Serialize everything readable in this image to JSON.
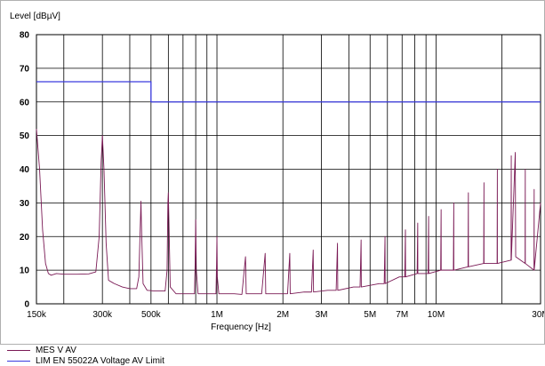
{
  "chart_data": {
    "type": "line",
    "ylabel": "Level [dBµV]",
    "xlabel": "Frequency [Hz]",
    "xscale": "log",
    "xlim": [
      150000,
      30000000
    ],
    "ylim": [
      0,
      80
    ],
    "yticks": [
      0,
      10,
      20,
      30,
      40,
      50,
      60,
      70,
      80
    ],
    "xticks": [
      {
        "value": 150000,
        "label": "150k"
      },
      {
        "value": 300000,
        "label": "300k"
      },
      {
        "value": 500000,
        "label": "500k"
      },
      {
        "value": 1000000,
        "label": "1M"
      },
      {
        "value": 2000000,
        "label": "2M"
      },
      {
        "value": 3000000,
        "label": "3M"
      },
      {
        "value": 5000000,
        "label": "5M"
      },
      {
        "value": 7000000,
        "label": "7M"
      },
      {
        "value": 10000000,
        "label": "10M"
      },
      {
        "value": 30000000,
        "label": "30M"
      }
    ],
    "grid": true,
    "series": [
      {
        "name": "MES V AV",
        "color": "#7a1a55",
        "points": [
          [
            150000,
            52
          ],
          [
            155000,
            40
          ],
          [
            160000,
            22
          ],
          [
            165000,
            12
          ],
          [
            170000,
            9
          ],
          [
            175000,
            8.5
          ],
          [
            185000,
            9
          ],
          [
            200000,
            8.8
          ],
          [
            230000,
            8.8
          ],
          [
            260000,
            8.9
          ],
          [
            280000,
            9.5
          ],
          [
            290000,
            20
          ],
          [
            296000,
            42
          ],
          [
            300000,
            50
          ],
          [
            305000,
            40
          ],
          [
            312000,
            18
          ],
          [
            320000,
            7
          ],
          [
            340000,
            6
          ],
          [
            370000,
            5
          ],
          [
            400000,
            4.5
          ],
          [
            430000,
            4.5
          ],
          [
            440000,
            8
          ],
          [
            448000,
            26
          ],
          [
            450000,
            30.5
          ],
          [
            452000,
            24
          ],
          [
            460000,
            6
          ],
          [
            480000,
            4
          ],
          [
            520000,
            3.8
          ],
          [
            580000,
            3.8
          ],
          [
            592000,
            10
          ],
          [
            597000,
            30
          ],
          [
            600000,
            33
          ],
          [
            603000,
            26
          ],
          [
            612000,
            5
          ],
          [
            650000,
            3
          ],
          [
            700000,
            3
          ],
          [
            750000,
            3
          ],
          [
            790000,
            3
          ],
          [
            795000,
            12
          ],
          [
            800000,
            25
          ],
          [
            805000,
            10
          ],
          [
            820000,
            3
          ],
          [
            900000,
            3
          ],
          [
            950000,
            3
          ],
          [
            990000,
            3
          ],
          [
            996000,
            12
          ],
          [
            1000000,
            20
          ],
          [
            1004000,
            8
          ],
          [
            1020000,
            3
          ],
          [
            1100000,
            3
          ],
          [
            1200000,
            3
          ],
          [
            1300000,
            2.8
          ],
          [
            1350000,
            14
          ],
          [
            1360000,
            3
          ],
          [
            1500000,
            3
          ],
          [
            1600000,
            3
          ],
          [
            1660000,
            15
          ],
          [
            1670000,
            3
          ],
          [
            2000000,
            3
          ],
          [
            2100000,
            3
          ],
          [
            2150000,
            15
          ],
          [
            2160000,
            3
          ],
          [
            2500000,
            3.5
          ],
          [
            2700000,
            3.5
          ],
          [
            2750000,
            16
          ],
          [
            2760000,
            3.5
          ],
          [
            3200000,
            4
          ],
          [
            3500000,
            4
          ],
          [
            3550000,
            18
          ],
          [
            3560000,
            4
          ],
          [
            4200000,
            5
          ],
          [
            4500000,
            5
          ],
          [
            4550000,
            19
          ],
          [
            4560000,
            5
          ],
          [
            5500000,
            6
          ],
          [
            5800000,
            6
          ],
          [
            5850000,
            20
          ],
          [
            5860000,
            6
          ],
          [
            6800000,
            8
          ],
          [
            7200000,
            8
          ],
          [
            7250000,
            22
          ],
          [
            7260000,
            8
          ],
          [
            8200000,
            9
          ],
          [
            8250000,
            24
          ],
          [
            8260000,
            9
          ],
          [
            9200000,
            9
          ],
          [
            9250000,
            26
          ],
          [
            9260000,
            9
          ],
          [
            10500000,
            10
          ],
          [
            10550000,
            28
          ],
          [
            10560000,
            10
          ],
          [
            12000000,
            10
          ],
          [
            12050000,
            30
          ],
          [
            12060000,
            10
          ],
          [
            14000000,
            11
          ],
          [
            14050000,
            33
          ],
          [
            14060000,
            11
          ],
          [
            16500000,
            12
          ],
          [
            16550000,
            36
          ],
          [
            16560000,
            12
          ],
          [
            19000000,
            12
          ],
          [
            19050000,
            40
          ],
          [
            19060000,
            12
          ],
          [
            22000000,
            13
          ],
          [
            22050000,
            44
          ],
          [
            22060000,
            13
          ],
          [
            23000000,
            45
          ],
          [
            23100000,
            14
          ],
          [
            25500000,
            12
          ],
          [
            25550000,
            40
          ],
          [
            25560000,
            12
          ],
          [
            28000000,
            10
          ],
          [
            28050000,
            34
          ],
          [
            28060000,
            10
          ],
          [
            30000000,
            30
          ]
        ]
      },
      {
        "name": "LIM  EN 55022A Voltage AV Limit",
        "color": "#3a3adf",
        "points": [
          [
            150000,
            66
          ],
          [
            500000,
            66
          ],
          [
            500000,
            60
          ],
          [
            30000000,
            60
          ]
        ]
      }
    ],
    "legend_position": "bottom-left"
  }
}
